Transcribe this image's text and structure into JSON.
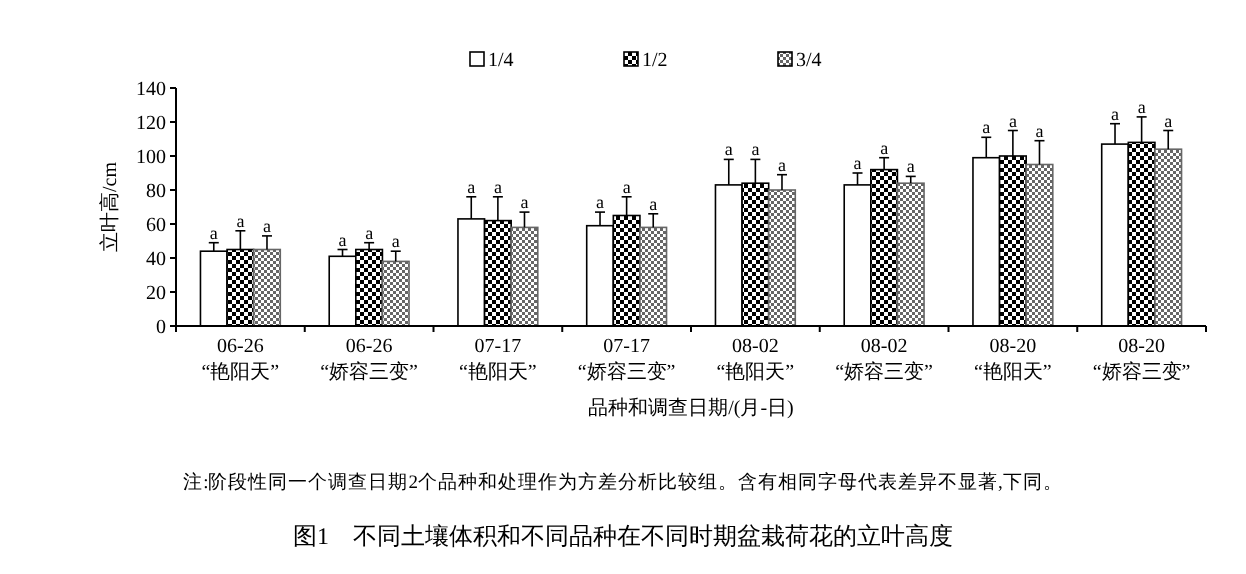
{
  "chart_data": {
    "type": "bar",
    "title": "图1　不同土壤体积和不同品种在不同时期盆栽荷花的立叶高度",
    "xlabel": "品种和调查日期/(月-日)",
    "ylabel": "立叶高/cm",
    "categories": [
      "06-26\n“艳阳天”",
      "06-26\n“娇容三变”",
      "07-17\n“艳阳天”",
      "07-17\n“娇容三变”",
      "08-02\n“艳阳天”",
      "08-02\n“娇容三变”",
      "08-20\n“艳阳天”",
      "08-20\n“娇容三变”"
    ],
    "series": [
      {
        "name": "1/4",
        "color": "#ffffff",
        "values": [
          44,
          41,
          63,
          59,
          83,
          83,
          99,
          107
        ],
        "errors": [
          5,
          4,
          13,
          8,
          15,
          7,
          12,
          12
        ],
        "value_labels": [
          "a",
          "a",
          "a",
          "a",
          "a",
          "a",
          "a",
          "a"
        ]
      },
      {
        "name": "1/2",
        "color": "#000000",
        "values": [
          45,
          45,
          62,
          65,
          84,
          92,
          100,
          108
        ],
        "errors": [
          11,
          4,
          14,
          11,
          14,
          7,
          15,
          15
        ],
        "value_labels": [
          "a",
          "a",
          "a",
          "a",
          "a",
          "a",
          "a",
          "a"
        ]
      },
      {
        "name": "3/4",
        "color": "#666666",
        "values": [
          45,
          38,
          58,
          58,
          80,
          84,
          95,
          104
        ],
        "errors": [
          8,
          6,
          9,
          8,
          9,
          4,
          14,
          11
        ],
        "value_labels": [
          "a",
          "a",
          "a",
          "a",
          "a",
          "a",
          "a",
          "a"
        ]
      }
    ],
    "ylim": [
      0,
      140
    ],
    "yticks": [
      0,
      20,
      40,
      60,
      80,
      100,
      120,
      140
    ],
    "grid": false,
    "legend": "top",
    "annotations": [
      "注:阶段性同一个调查日期2个品种和处理作为方差分析比较组。含有相同字母代表差异不显著,下同。"
    ]
  }
}
